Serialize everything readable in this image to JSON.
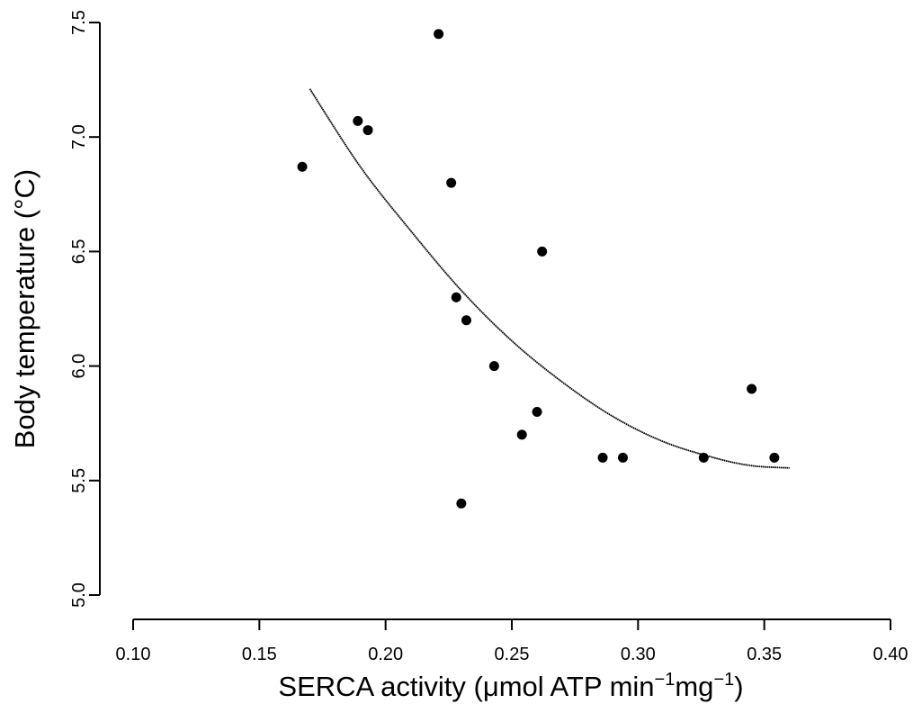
{
  "chart_data": {
    "type": "scatter",
    "title": "",
    "xlabel": {
      "parts": [
        {
          "text": "SERCA activity (",
          "sup": false
        },
        {
          "text": "μ",
          "sup": false
        },
        {
          "text": "mol ATP  min",
          "sup": false
        },
        {
          "text": "−1",
          "sup": true
        },
        {
          "text": "mg",
          "sup": false
        },
        {
          "text": "−1",
          "sup": true
        },
        {
          "text": ")",
          "sup": false
        }
      ]
    },
    "ylabel": "Body temperature (°C)",
    "xlim": [
      0.1,
      0.4
    ],
    "ylim": [
      5.0,
      7.5
    ],
    "xticks": [
      "0.10",
      "0.15",
      "0.20",
      "0.25",
      "0.30",
      "0.35",
      "0.40"
    ],
    "yticks": [
      "5.0",
      "5.5",
      "6.0",
      "6.5",
      "7.0",
      "7.5"
    ],
    "grid": false,
    "series": [
      {
        "points": [
          {
            "x": 0.167,
            "y": 6.87
          },
          {
            "x": 0.189,
            "y": 7.07
          },
          {
            "x": 0.193,
            "y": 7.03
          },
          {
            "x": 0.221,
            "y": 7.45
          },
          {
            "x": 0.226,
            "y": 6.8
          },
          {
            "x": 0.228,
            "y": 6.3
          },
          {
            "x": 0.23,
            "y": 5.4
          },
          {
            "x": 0.232,
            "y": 6.2
          },
          {
            "x": 0.243,
            "y": 6.0
          },
          {
            "x": 0.254,
            "y": 5.7
          },
          {
            "x": 0.26,
            "y": 5.8
          },
          {
            "x": 0.262,
            "y": 6.5
          },
          {
            "x": 0.286,
            "y": 5.6
          },
          {
            "x": 0.294,
            "y": 5.6
          },
          {
            "x": 0.326,
            "y": 5.6
          },
          {
            "x": 0.345,
            "y": 5.9
          },
          {
            "x": 0.354,
            "y": 5.6
          }
        ]
      }
    ],
    "fit_curve": {
      "type": "quadratic",
      "points": [
        {
          "x": 0.17,
          "y": 7.21
        },
        {
          "x": 0.19,
          "y": 6.87
        },
        {
          "x": 0.21,
          "y": 6.59
        },
        {
          "x": 0.23,
          "y": 6.33
        },
        {
          "x": 0.25,
          "y": 6.11
        },
        {
          "x": 0.27,
          "y": 5.93
        },
        {
          "x": 0.29,
          "y": 5.78
        },
        {
          "x": 0.31,
          "y": 5.67
        },
        {
          "x": 0.33,
          "y": 5.6
        },
        {
          "x": 0.345,
          "y": 5.565
        },
        {
          "x": 0.36,
          "y": 5.555
        }
      ]
    }
  }
}
